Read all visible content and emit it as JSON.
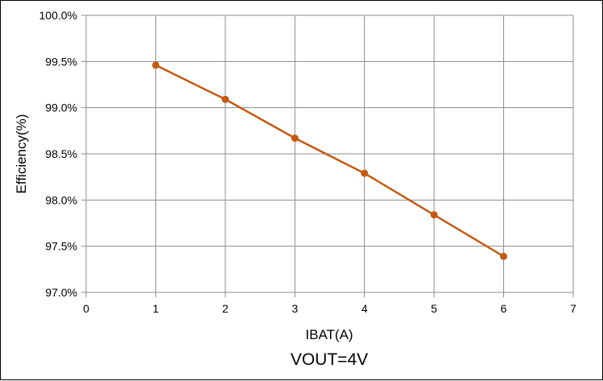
{
  "chart_data": {
    "type": "line",
    "title": "VOUT=4V",
    "xlabel": "IBAT(A)",
    "ylabel": "Efficiency(%)",
    "xlim": [
      0,
      7
    ],
    "ylim": [
      97.0,
      100.0
    ],
    "x_ticks": [
      "0",
      "1",
      "2",
      "3",
      "4",
      "5",
      "6",
      "7"
    ],
    "y_ticks": [
      "97.0%",
      "97.5%",
      "98.0%",
      "98.5%",
      "99.0%",
      "99.5%",
      "100.0%"
    ],
    "grid": true,
    "series": [
      {
        "color": "#C55A11",
        "x": [
          1,
          2,
          3,
          4,
          5,
          6
        ],
        "y": [
          99.46,
          99.09,
          98.67,
          98.29,
          97.84,
          97.39
        ]
      }
    ]
  }
}
